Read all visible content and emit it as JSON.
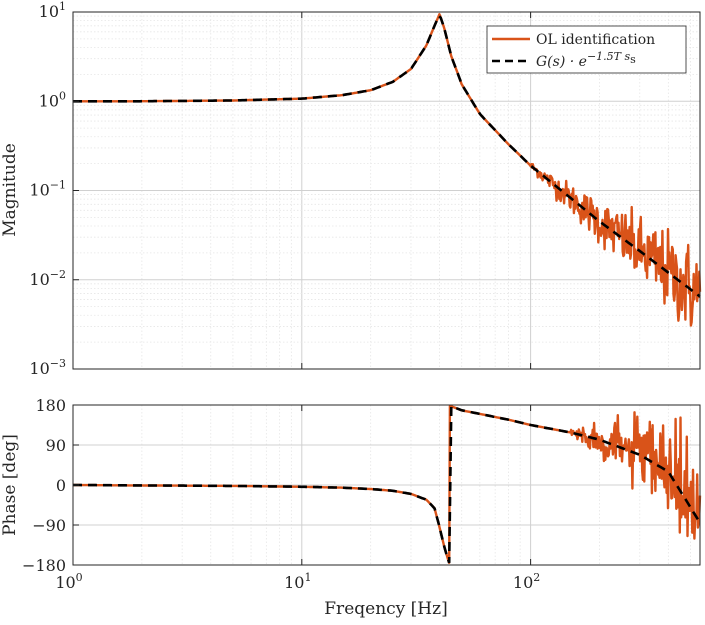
{
  "chart_data": [
    {
      "type": "line",
      "panel": "magnitude",
      "ylabel": "Magnitude",
      "xlabel": "",
      "xscale": "log",
      "yscale": "log",
      "xlim": [
        1,
        550
      ],
      "ylim": [
        0.001,
        10
      ],
      "yticks": [
        {
          "base": "10",
          "exp": "1",
          "value": 10
        },
        {
          "base": "10",
          "exp": "0",
          "value": 1
        },
        {
          "base": "10",
          "exp": "-1",
          "value": 0.1
        },
        {
          "base": "10",
          "exp": "-2",
          "value": 0.01
        },
        {
          "base": "10",
          "exp": "-3",
          "value": 0.001
        }
      ],
      "grid": true,
      "legend_position": "top-right",
      "series": [
        {
          "name": "OL identification",
          "color": "#d95319",
          "style": "solid",
          "noisy": true
        },
        {
          "name": "G(s) · e^{-1.5T_s s}",
          "color": "#000000",
          "style": "dashed",
          "noisy": false
        }
      ],
      "x": [
        1,
        2,
        5,
        10,
        15,
        20,
        25,
        30,
        35,
        38,
        40,
        42,
        45,
        50,
        60,
        80,
        100,
        150,
        200,
        300,
        400,
        550
      ],
      "values": [
        1.0,
        1.0,
        1.02,
        1.07,
        1.17,
        1.33,
        1.65,
        2.3,
        4.2,
        7.0,
        9.5,
        6.5,
        3.2,
        1.55,
        0.72,
        0.33,
        0.19,
        0.082,
        0.045,
        0.021,
        0.012,
        0.0065
      ]
    },
    {
      "type": "line",
      "panel": "phase",
      "ylabel": "Phase [deg]",
      "xlabel": "Freqency [Hz]",
      "xscale": "log",
      "yscale": "linear",
      "xlim": [
        1,
        550
      ],
      "ylim": [
        -180,
        180
      ],
      "yticks": [
        180,
        90,
        0,
        -90,
        -180
      ],
      "xticks": [
        {
          "base": "10",
          "exp": "0",
          "value": 1
        },
        {
          "base": "10",
          "exp": "1",
          "value": 10
        },
        {
          "base": "10",
          "exp": "2",
          "value": 100
        }
      ],
      "grid": true,
      "series": [
        {
          "name": "OL identification",
          "color": "#d95319",
          "style": "solid",
          "noisy": true
        },
        {
          "name": "G(s) · e^{-1.5T_s s}",
          "color": "#000000",
          "style": "dashed",
          "noisy": false
        }
      ],
      "x": [
        1,
        2,
        5,
        10,
        15,
        20,
        25,
        30,
        35,
        38,
        40,
        42,
        44,
        44.5,
        50,
        60,
        80,
        100,
        150,
        200,
        300,
        400,
        550
      ],
      "values": [
        0,
        -1,
        -2,
        -4,
        -6,
        -9,
        -13,
        -20,
        -33,
        -52,
        -95,
        -140,
        -175,
        178,
        168,
        160,
        147,
        135,
        118,
        102,
        68,
        30,
        -85
      ]
    }
  ],
  "legend": {
    "items": [
      {
        "text": "OL identification"
      },
      {
        "text_main": "G(s) · e",
        "text_exp": "−1.5T s",
        "text_sub": "s"
      }
    ]
  }
}
